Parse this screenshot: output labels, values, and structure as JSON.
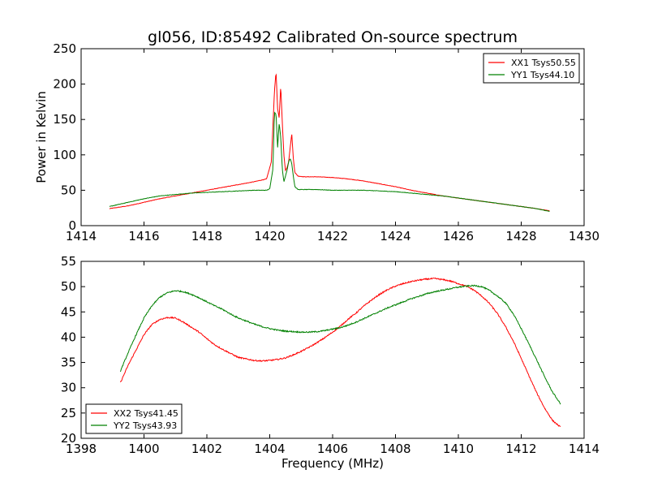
{
  "title": "gl056, ID:85492 Calibrated On-source spectrum",
  "chart_data": [
    {
      "type": "line",
      "ylabel": "Power in Kelvin",
      "xlabel": "",
      "xlim": [
        1414,
        1430
      ],
      "ylim": [
        0,
        250
      ],
      "xticks": [
        1414,
        1416,
        1418,
        1420,
        1422,
        1424,
        1426,
        1428,
        1430
      ],
      "yticks": [
        0,
        50,
        100,
        150,
        200,
        250
      ],
      "grid": false,
      "legend_position": "top-right",
      "series": [
        {
          "name": "XX1 Tsys50.55",
          "color": "#ff0000",
          "x": [
            1414.9,
            1415.5,
            1416.0,
            1416.5,
            1417.0,
            1417.5,
            1418.0,
            1418.5,
            1419.0,
            1419.5,
            1419.9,
            1420.05,
            1420.15,
            1420.2,
            1420.25,
            1420.3,
            1420.35,
            1420.4,
            1420.45,
            1420.5,
            1420.55,
            1420.6,
            1420.65,
            1420.7,
            1420.75,
            1420.8,
            1420.9,
            1421.1,
            1421.5,
            1422.0,
            1422.5,
            1423.0,
            1423.5,
            1424.0,
            1424.5,
            1425.0,
            1425.5,
            1426.0,
            1426.5,
            1427.0,
            1427.5,
            1428.0,
            1428.5,
            1428.9
          ],
          "y": [
            24,
            28,
            33,
            38,
            42,
            46,
            50,
            54,
            58,
            62,
            66,
            90,
            190,
            218,
            165,
            152,
            198,
            145,
            100,
            78,
            82,
            90,
            110,
            130,
            95,
            75,
            70,
            69,
            69,
            68,
            66,
            63,
            59,
            55,
            50,
            46,
            42,
            39,
            36,
            33,
            30,
            27,
            24,
            21
          ]
        },
        {
          "name": "YY1 Tsys44.10",
          "color": "#008000",
          "x": [
            1414.9,
            1415.5,
            1416.0,
            1416.5,
            1417.0,
            1417.5,
            1418.0,
            1418.5,
            1419.0,
            1419.5,
            1419.9,
            1420.0,
            1420.1,
            1420.15,
            1420.2,
            1420.25,
            1420.3,
            1420.35,
            1420.4,
            1420.45,
            1420.5,
            1420.55,
            1420.6,
            1420.65,
            1420.7,
            1420.75,
            1420.8,
            1420.9,
            1421.1,
            1421.5,
            1422.0,
            1422.5,
            1423.0,
            1423.5,
            1424.0,
            1424.5,
            1425.0,
            1425.5,
            1426.0,
            1426.5,
            1427.0,
            1427.5,
            1428.0,
            1428.5,
            1428.9
          ],
          "y": [
            27,
            33,
            38,
            42,
            44,
            46,
            47,
            48,
            49,
            50,
            50,
            52,
            80,
            160,
            158,
            110,
            145,
            125,
            80,
            62,
            70,
            78,
            90,
            95,
            88,
            70,
            55,
            51,
            51,
            51,
            50,
            50,
            50,
            49,
            48,
            46,
            44,
            42,
            39,
            36,
            33,
            30,
            27,
            24,
            20
          ]
        }
      ]
    },
    {
      "type": "line",
      "xlabel": "Frequency (MHz)",
      "ylabel": "",
      "xlim": [
        1398,
        1414
      ],
      "ylim": [
        20,
        55
      ],
      "xticks": [
        1398,
        1400,
        1402,
        1404,
        1406,
        1408,
        1410,
        1412,
        1414
      ],
      "yticks": [
        20,
        25,
        30,
        35,
        40,
        45,
        50,
        55
      ],
      "grid": false,
      "legend_position": "bottom-left",
      "series": [
        {
          "name": "XX2 Tsys41.45",
          "color": "#ff0000",
          "x": [
            1399.25,
            1399.5,
            1399.75,
            1400.0,
            1400.25,
            1400.5,
            1400.75,
            1401.0,
            1401.25,
            1401.5,
            1401.75,
            1402.0,
            1402.25,
            1402.5,
            1402.75,
            1403.0,
            1403.25,
            1403.5,
            1403.75,
            1404.0,
            1404.25,
            1404.5,
            1404.75,
            1405.0,
            1405.25,
            1405.5,
            1405.75,
            1406.0,
            1406.25,
            1406.5,
            1406.75,
            1407.0,
            1407.25,
            1407.5,
            1407.75,
            1408.0,
            1408.25,
            1408.5,
            1408.75,
            1409.0,
            1409.25,
            1409.5,
            1409.75,
            1410.0,
            1410.25,
            1410.5,
            1410.75,
            1411.0,
            1411.25,
            1411.5,
            1411.75,
            1412.0,
            1412.25,
            1412.5,
            1412.75,
            1413.0,
            1413.25
          ],
          "y": [
            31.0,
            34.5,
            37.5,
            40.5,
            42.5,
            43.5,
            43.9,
            43.8,
            43.0,
            42.0,
            41.0,
            39.7,
            38.5,
            37.6,
            36.8,
            36.0,
            35.7,
            35.4,
            35.3,
            35.4,
            35.6,
            35.9,
            36.5,
            37.2,
            38.0,
            38.9,
            39.9,
            41.0,
            42.2,
            43.6,
            44.8,
            46.2,
            47.4,
            48.5,
            49.4,
            50.1,
            50.6,
            51.0,
            51.3,
            51.5,
            51.6,
            51.4,
            51.1,
            50.6,
            50.1,
            49.3,
            48.1,
            46.6,
            44.6,
            42.1,
            39.2,
            35.8,
            32.3,
            28.9,
            25.9,
            23.5,
            22.2
          ]
        },
        {
          "name": "YY2 Tsys43.93",
          "color": "#008000",
          "x": [
            1399.25,
            1399.5,
            1399.75,
            1400.0,
            1400.25,
            1400.5,
            1400.75,
            1401.0,
            1401.25,
            1401.5,
            1401.75,
            1402.0,
            1402.25,
            1402.5,
            1402.75,
            1403.0,
            1403.25,
            1403.5,
            1403.75,
            1404.0,
            1404.25,
            1404.5,
            1404.75,
            1405.0,
            1405.25,
            1405.5,
            1405.75,
            1406.0,
            1406.25,
            1406.5,
            1406.75,
            1407.0,
            1407.25,
            1407.5,
            1407.75,
            1408.0,
            1408.25,
            1408.5,
            1408.75,
            1409.0,
            1409.25,
            1409.5,
            1409.75,
            1410.0,
            1410.25,
            1410.5,
            1410.75,
            1411.0,
            1411.25,
            1411.5,
            1411.75,
            1412.0,
            1412.25,
            1412.5,
            1412.75,
            1413.0,
            1413.25
          ],
          "y": [
            33.3,
            37.0,
            40.5,
            43.8,
            46.2,
            47.9,
            48.8,
            49.2,
            49.0,
            48.5,
            47.8,
            47.0,
            46.2,
            45.5,
            44.6,
            43.8,
            43.2,
            42.6,
            42.1,
            41.7,
            41.4,
            41.2,
            41.1,
            41.0,
            41.0,
            41.1,
            41.3,
            41.6,
            41.9,
            42.4,
            43.0,
            43.7,
            44.4,
            45.1,
            45.8,
            46.4,
            47.0,
            47.6,
            48.1,
            48.6,
            49.0,
            49.3,
            49.6,
            49.9,
            50.1,
            50.2,
            50.0,
            49.2,
            48.1,
            46.8,
            44.6,
            41.7,
            38.6,
            35.4,
            32.1,
            29.1,
            26.8
          ]
        }
      ]
    }
  ]
}
